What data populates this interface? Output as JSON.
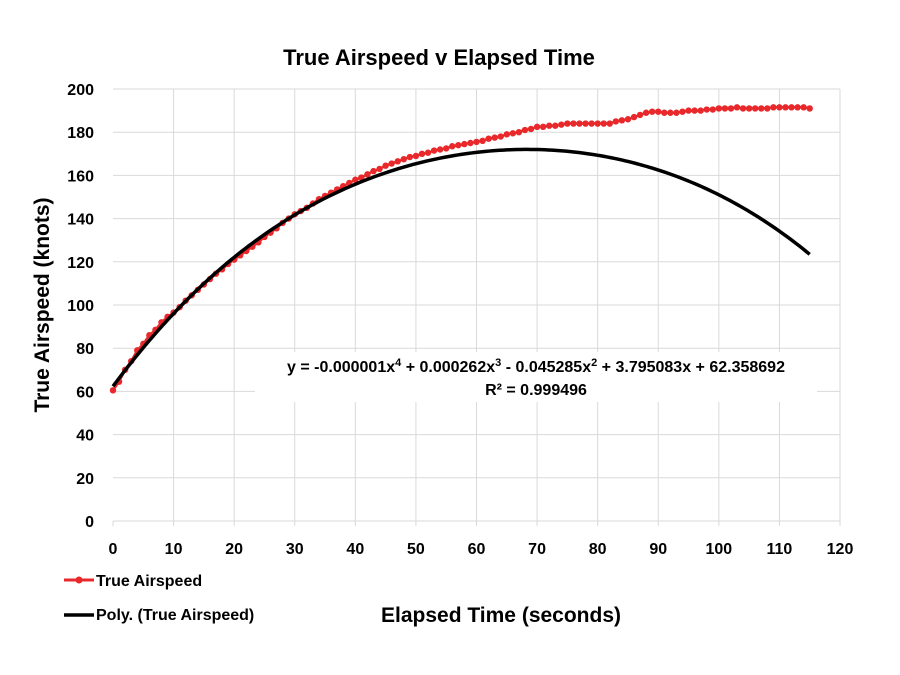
{
  "chart_data": {
    "type": "scatter",
    "title": "True Airspeed v Elapsed Time",
    "xlabel": "Elapsed Time (seconds)",
    "ylabel": "True Airspeed (knots)",
    "xlim": [
      0,
      120
    ],
    "ylim": [
      0,
      200
    ],
    "x_ticks": [
      0,
      10,
      20,
      30,
      40,
      50,
      60,
      70,
      80,
      90,
      100,
      110,
      120
    ],
    "y_ticks": [
      0,
      20,
      40,
      60,
      80,
      100,
      120,
      140,
      160,
      180,
      200
    ],
    "grid": true,
    "legend_position": "bottom-left",
    "colors": {
      "series": "#e8282a",
      "trendline": "#000000",
      "grid": "#d9d9d9"
    },
    "series": [
      {
        "name": "True Airspeed",
        "x": [
          0,
          1,
          2,
          3,
          4,
          5,
          6,
          7,
          8,
          9,
          10,
          11,
          12,
          13,
          14,
          15,
          16,
          17,
          18,
          19,
          20,
          21,
          22,
          23,
          24,
          25,
          26,
          27,
          28,
          29,
          30,
          31,
          32,
          33,
          34,
          35,
          36,
          37,
          38,
          39,
          40,
          41,
          42,
          43,
          44,
          45,
          46,
          47,
          48,
          49,
          50,
          51,
          52,
          53,
          54,
          55,
          56,
          57,
          58,
          59,
          60,
          61,
          62,
          63,
          64,
          65,
          66,
          67,
          68,
          69,
          70,
          71,
          72,
          73,
          74,
          75,
          76,
          77,
          78,
          79,
          80,
          81,
          82,
          83,
          84,
          85,
          86,
          87,
          88,
          89,
          90,
          91,
          92,
          93,
          94,
          95,
          96,
          97,
          98,
          99,
          100,
          101,
          102,
          103,
          104,
          105,
          106,
          107,
          108,
          109,
          110,
          111,
          112,
          113,
          114,
          115
        ],
        "y": [
          60.5,
          64.5,
          70,
          74,
          79,
          82,
          86,
          88.5,
          92,
          94.5,
          96.5,
          99,
          102,
          104.5,
          107,
          109.5,
          112,
          114.5,
          116.5,
          119,
          121,
          123,
          125,
          127,
          129,
          131.5,
          133.5,
          135.5,
          138,
          140,
          142,
          143.5,
          145,
          147,
          149,
          150.5,
          152,
          153.5,
          155,
          156.5,
          158,
          159,
          160.5,
          162,
          163,
          164.5,
          165.5,
          166.5,
          167.5,
          168.5,
          169,
          170,
          170.5,
          171.5,
          172,
          172.5,
          173.5,
          174,
          174.5,
          175,
          175.5,
          176,
          177,
          177.5,
          178,
          179,
          179.5,
          180,
          181,
          181.5,
          182.5,
          182.5,
          183,
          183,
          183.5,
          184,
          184,
          184,
          184,
          184,
          184,
          184,
          184,
          185,
          185.5,
          186,
          187,
          188,
          189,
          189.5,
          189.5,
          189,
          189,
          189,
          189.5,
          190,
          190,
          190,
          190.5,
          190.5,
          191,
          191,
          191,
          191.5,
          191,
          191,
          191,
          191,
          191,
          191.5,
          191.5,
          191.5,
          191.5,
          191.5,
          191.5,
          191
        ]
      }
    ],
    "trendline": {
      "name": "Poly. (True Airspeed)",
      "type": "polynomial",
      "order": 4,
      "coefficients": [
        62.358692,
        3.795083,
        -0.045285,
        0.000262,
        -1e-06
      ]
    },
    "equation": {
      "line1_prefix": "y = -0.000001x",
      "e4": "4",
      "part2": " + 0.000262x",
      "e3": "3",
      "part3": " - 0.045285x",
      "e2": "2",
      "part4": " + 3.795083x + 62.358692",
      "r_squared": "R² = 0.999496"
    }
  }
}
